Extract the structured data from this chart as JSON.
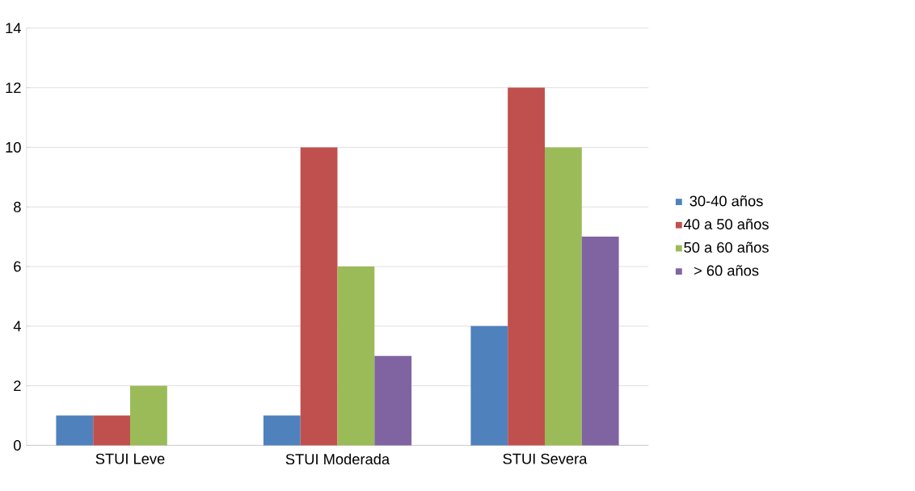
{
  "chart_data": {
    "type": "bar",
    "categories": [
      "STUI Leve",
      "STUI Moderada",
      "STUI Severa"
    ],
    "series": [
      {
        "name": "30-40 años",
        "color": "#4f81bd",
        "values": [
          1,
          1,
          4
        ]
      },
      {
        "name": "40 a 50 años",
        "color": "#c0504d",
        "values": [
          1,
          10,
          12
        ]
      },
      {
        "name": "50 a 60 años",
        "color": "#9bbb59",
        "values": [
          2,
          6,
          10
        ]
      },
      {
        "name": "> 60 años",
        "color": "#8064a2",
        "values": [
          null,
          3,
          7
        ]
      }
    ],
    "ylim": [
      0,
      14
    ],
    "yticks": [
      0,
      2,
      4,
      6,
      8,
      10,
      12,
      14
    ],
    "grid": "y",
    "legend": "right"
  }
}
